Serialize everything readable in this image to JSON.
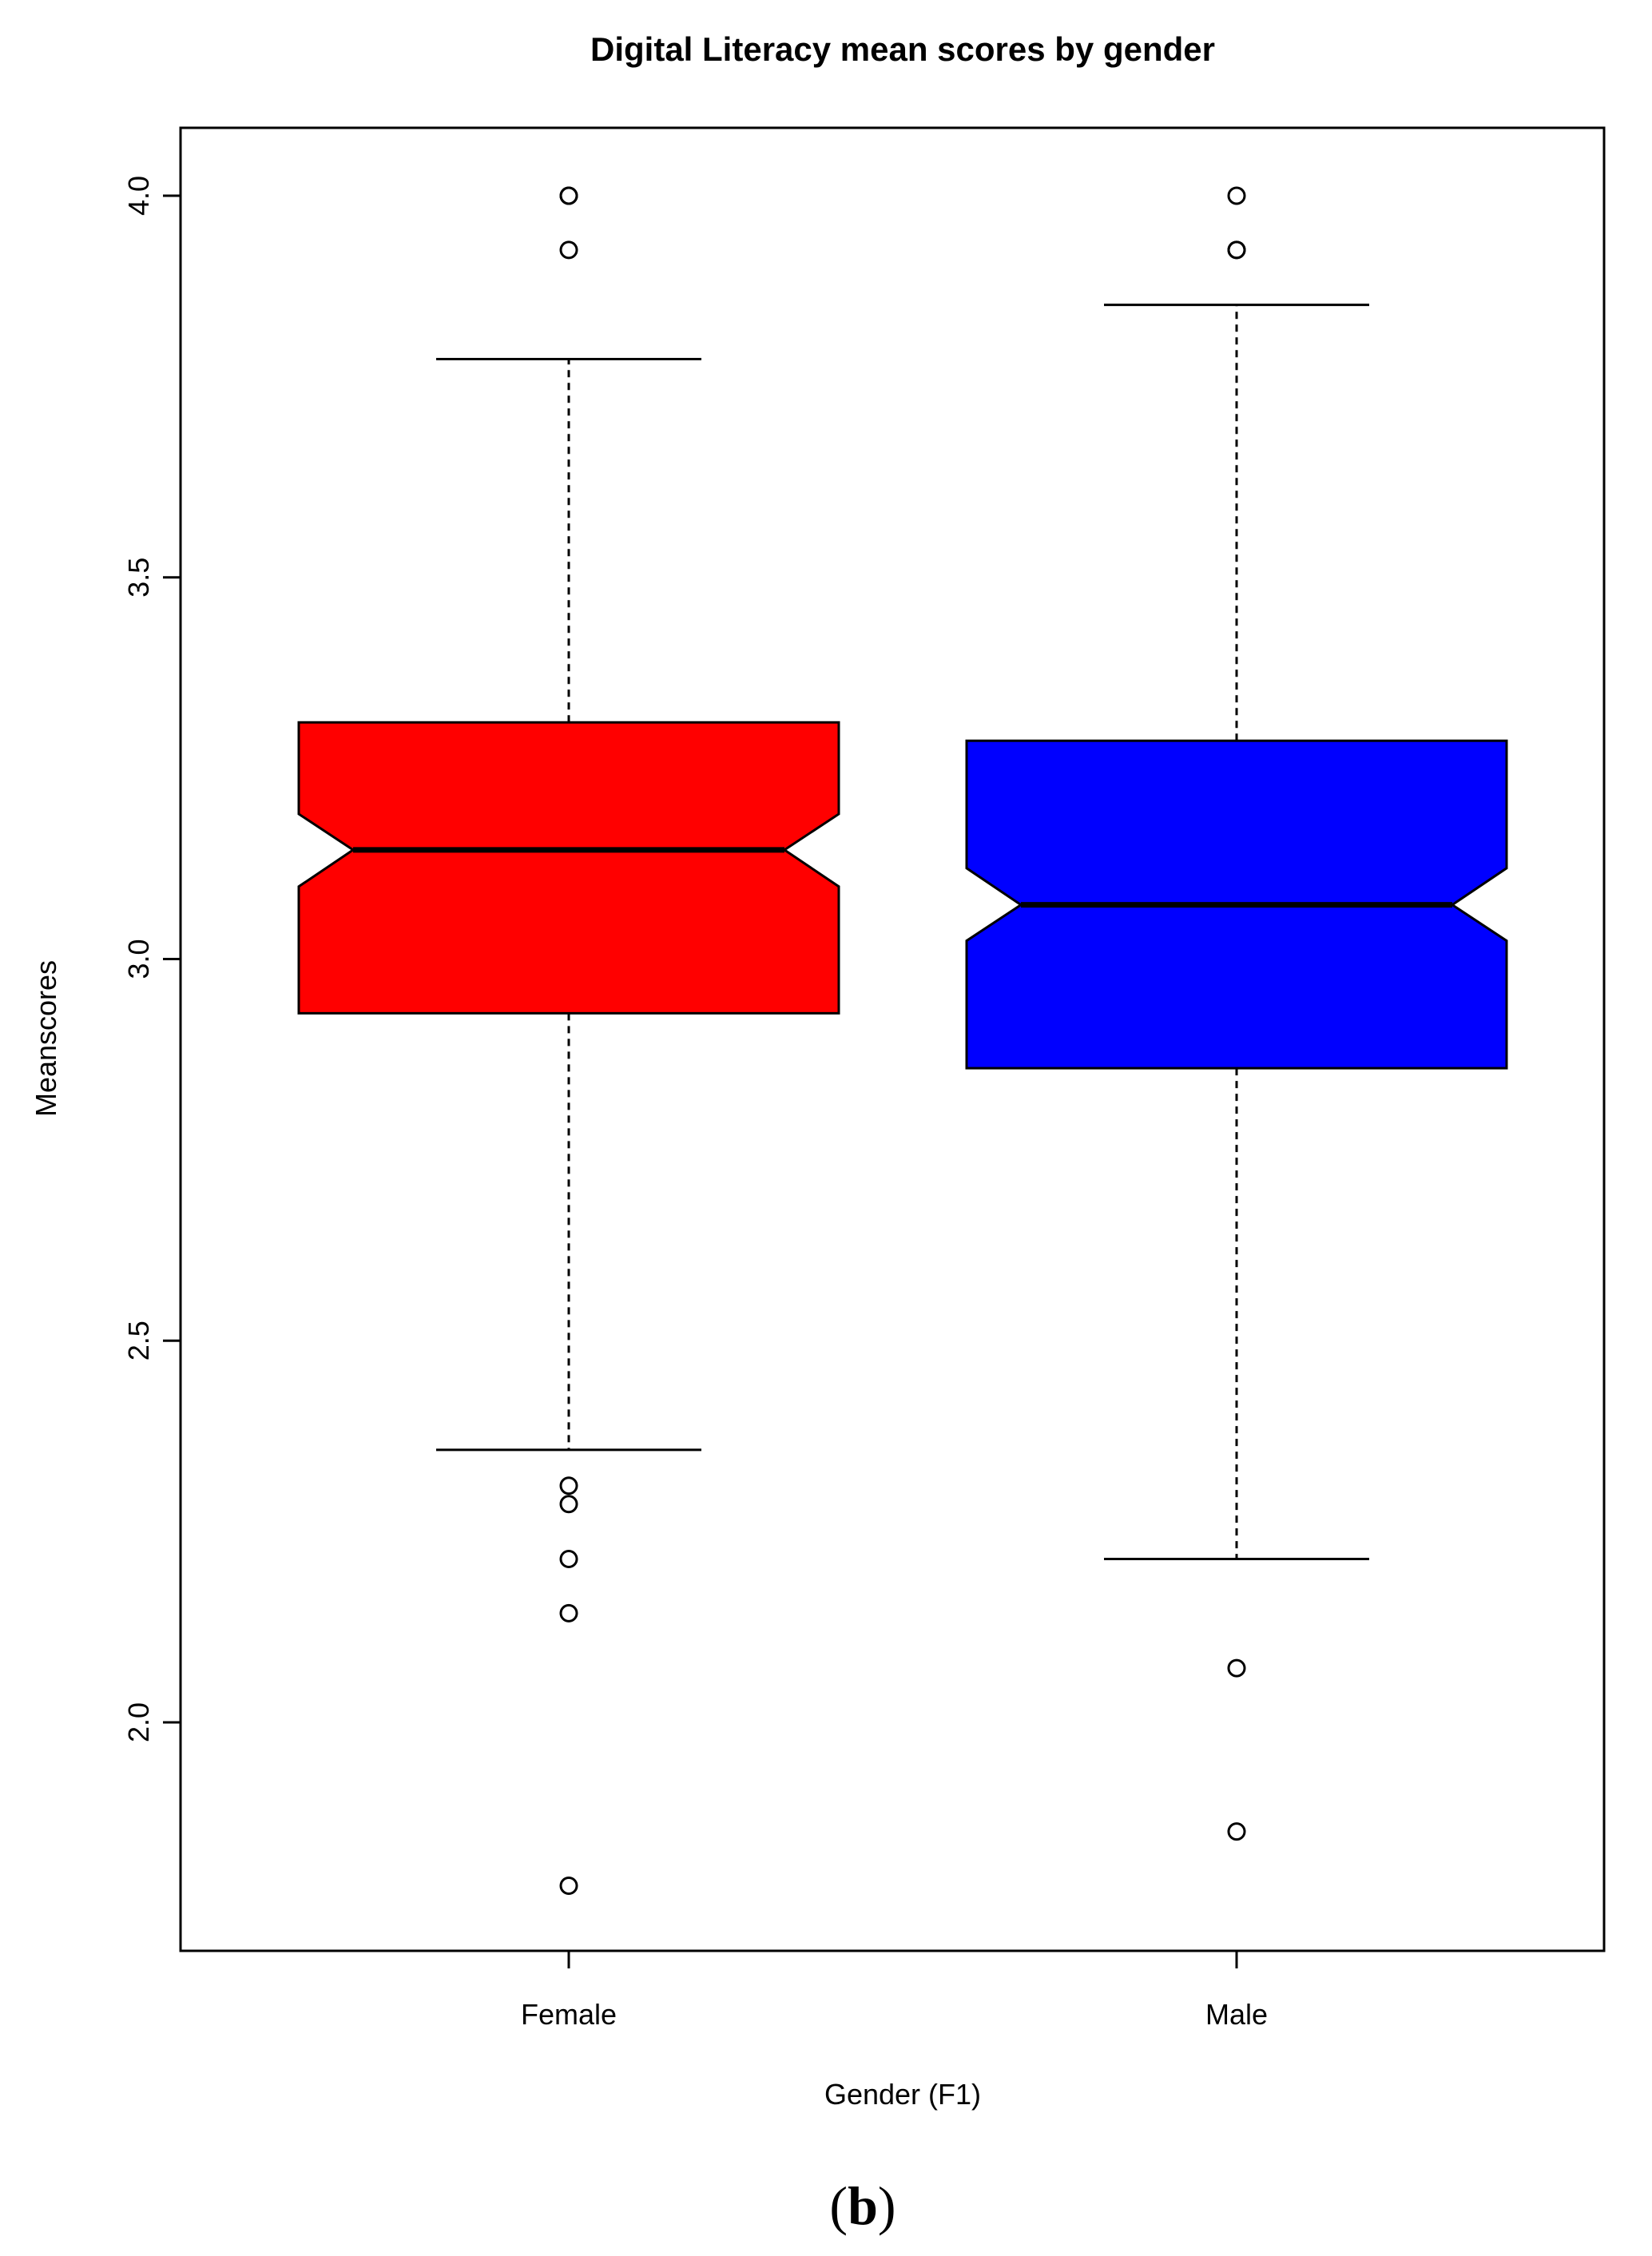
{
  "chart_data": {
    "type": "boxplot",
    "title": "Digital Literacy mean scores by gender",
    "xlabel": "Gender (F1)",
    "ylabel": "Meanscores",
    "categories": [
      "Female",
      "Male"
    ],
    "ylim": [
      1.7,
      4.09
    ],
    "yticks": [
      2.0,
      2.5,
      3.0,
      3.5,
      4.0
    ],
    "ytick_labels": [
      "2.0",
      "2.5",
      "3.0",
      "3.5",
      "4.0"
    ],
    "notched": true,
    "grid": false,
    "series": [
      {
        "category": "Female",
        "color": "#ff0000",
        "whisker_low": 2.357,
        "q1": 2.929,
        "median": 3.143,
        "q3": 3.31,
        "whisker_high": 3.786,
        "notch_low": 3.095,
        "notch_high": 3.19,
        "outliers": [
          4.0,
          4.0,
          3.929,
          2.31,
          2.286,
          2.214,
          2.143,
          1.786
        ]
      },
      {
        "category": "Male",
        "color": "#0000ff",
        "whisker_low": 2.214,
        "q1": 2.857,
        "median": 3.071,
        "q3": 3.286,
        "whisker_high": 3.857,
        "notch_low": 3.024,
        "notch_high": 3.119,
        "outliers": [
          4.0,
          3.929,
          3.929,
          2.071,
          1.857
        ]
      }
    ]
  },
  "panel_label": {
    "open": "(",
    "letter": "b",
    "close": ")"
  }
}
